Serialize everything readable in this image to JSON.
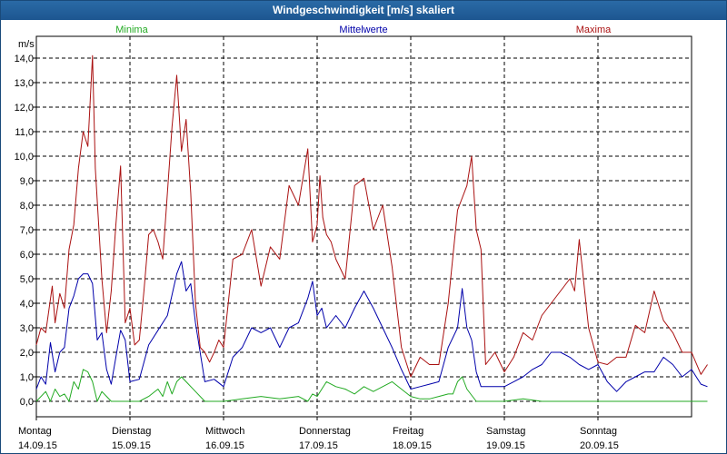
{
  "window": {
    "title": "Windgeschwindigkeit [m/s] skaliert"
  },
  "chart_data": {
    "type": "line",
    "title": "Windgeschwindigkeit [m/s] skaliert",
    "ylabel": "m/s",
    "xlabel": "",
    "ylim": [
      -0.3,
      14.5
    ],
    "yticks": [
      0,
      1,
      2,
      3,
      4,
      5,
      6,
      7,
      8,
      9,
      10,
      11,
      12,
      13,
      14
    ],
    "ytick_labels": [
      "0,0",
      "1,0",
      "2,0",
      "3,0",
      "4,0",
      "5,0",
      "6,0",
      "7,0",
      "8,0",
      "9,0",
      "10,0",
      "11,0",
      "12,0",
      "13,0",
      "14,0"
    ],
    "xlim": [
      0,
      7.2
    ],
    "xticks": [
      {
        "day": "Montag",
        "date": "14.09.15",
        "x": 0
      },
      {
        "day": "Dienstag",
        "date": "15.09.15",
        "x": 1
      },
      {
        "day": "Mittwoch",
        "date": "16.09.15",
        "x": 2
      },
      {
        "day": "Donnerstag",
        "date": "17.09.15",
        "x": 3
      },
      {
        "day": "Freitag",
        "date": "18.09.15",
        "x": 4
      },
      {
        "day": "Samstag",
        "date": "19.09.15",
        "x": 5
      },
      {
        "day": "Sonntag",
        "date": "20.09.15",
        "x": 6
      }
    ],
    "legend": [
      {
        "label": "Minima",
        "color": "#22aa22"
      },
      {
        "label": "Mittelwerte",
        "color": "#0000aa"
      },
      {
        "label": "Maxima",
        "color": "#aa1111"
      }
    ],
    "series": [
      {
        "name": "Maxima",
        "color": "#aa1111",
        "x": [
          0,
          0.05,
          0.1,
          0.17,
          0.2,
          0.25,
          0.3,
          0.35,
          0.4,
          0.45,
          0.5,
          0.55,
          0.6,
          0.63,
          0.7,
          0.75,
          0.8,
          0.85,
          0.9,
          0.95,
          1.0,
          1.05,
          1.1,
          1.15,
          1.2,
          1.25,
          1.3,
          1.35,
          1.4,
          1.45,
          1.5,
          1.55,
          1.6,
          1.65,
          1.7,
          1.75,
          1.8,
          1.85,
          1.9,
          1.95,
          2.0,
          2.1,
          2.2,
          2.3,
          2.4,
          2.5,
          2.6,
          2.7,
          2.8,
          2.9,
          2.95,
          3.0,
          3.03,
          3.06,
          3.1,
          3.15,
          3.2,
          3.3,
          3.4,
          3.5,
          3.6,
          3.7,
          3.8,
          3.9,
          4.0,
          4.1,
          4.2,
          4.3,
          4.4,
          4.5,
          4.6,
          4.65,
          4.7,
          4.75,
          4.8,
          4.9,
          5.0,
          5.1,
          5.2,
          5.3,
          5.4,
          5.5,
          5.6,
          5.7,
          5.75,
          5.8,
          5.9,
          6.0,
          6.1,
          6.2,
          6.3,
          6.4,
          6.5,
          6.6,
          6.7,
          6.8,
          6.9,
          7.0,
          7.1,
          7.17
        ],
        "values": [
          2.3,
          3.0,
          2.8,
          4.7,
          3.2,
          4.4,
          3.8,
          6.2,
          7.2,
          9.5,
          11.0,
          10.4,
          14.1,
          9.5,
          5.0,
          2.8,
          4.5,
          7.2,
          9.6,
          3.2,
          3.8,
          2.3,
          2.5,
          4.5,
          6.8,
          7.0,
          6.5,
          5.8,
          8.5,
          11.2,
          13.3,
          10.2,
          11.5,
          8.5,
          4.0,
          2.2,
          2.0,
          1.6,
          2.0,
          2.5,
          2.2,
          5.8,
          6.0,
          7.0,
          4.7,
          6.3,
          5.8,
          8.8,
          8.0,
          10.3,
          6.5,
          7.2,
          9.2,
          7.5,
          6.8,
          6.5,
          5.8,
          5.0,
          8.8,
          9.1,
          7.0,
          8.0,
          5.5,
          2.2,
          1.0,
          1.8,
          1.5,
          1.5,
          4.0,
          7.8,
          8.8,
          10.0,
          7.0,
          6.2,
          1.5,
          2.0,
          1.2,
          1.8,
          2.8,
          2.5,
          3.5,
          4.0,
          4.5,
          5.0,
          4.5,
          6.6,
          3.0,
          1.6,
          1.5,
          1.8,
          1.8,
          3.1,
          2.8,
          4.5,
          3.3,
          2.8,
          2.0,
          2.0,
          1.1,
          1.5
        ]
      },
      {
        "name": "Mittelwerte",
        "color": "#0000aa",
        "x": [
          0,
          0.05,
          0.1,
          0.15,
          0.2,
          0.25,
          0.3,
          0.35,
          0.4,
          0.45,
          0.5,
          0.55,
          0.6,
          0.65,
          0.7,
          0.75,
          0.8,
          0.85,
          0.9,
          0.95,
          1.0,
          1.1,
          1.2,
          1.3,
          1.4,
          1.5,
          1.55,
          1.6,
          1.65,
          1.7,
          1.8,
          1.9,
          2.0,
          2.1,
          2.2,
          2.3,
          2.4,
          2.5,
          2.6,
          2.7,
          2.8,
          2.9,
          2.95,
          3.0,
          3.05,
          3.1,
          3.2,
          3.3,
          3.4,
          3.5,
          3.6,
          3.7,
          3.8,
          3.9,
          4.0,
          4.1,
          4.2,
          4.3,
          4.4,
          4.5,
          4.55,
          4.6,
          4.65,
          4.7,
          4.75,
          4.8,
          4.9,
          5.0,
          5.1,
          5.2,
          5.3,
          5.4,
          5.5,
          5.6,
          5.7,
          5.8,
          5.9,
          6.0,
          6.1,
          6.2,
          6.3,
          6.4,
          6.5,
          6.6,
          6.7,
          6.8,
          6.9,
          7.0,
          7.1,
          7.17
        ],
        "values": [
          0.5,
          1.0,
          0.7,
          2.4,
          1.2,
          2.0,
          2.2,
          3.8,
          4.3,
          5.0,
          5.2,
          5.2,
          4.8,
          2.5,
          2.8,
          1.3,
          0.7,
          1.8,
          2.9,
          2.5,
          0.8,
          0.9,
          2.3,
          2.9,
          3.5,
          5.2,
          5.7,
          4.5,
          4.8,
          3.2,
          0.8,
          0.9,
          0.6,
          1.8,
          2.2,
          3.0,
          2.8,
          3.0,
          2.2,
          3.0,
          3.2,
          4.2,
          4.9,
          3.5,
          3.8,
          3.0,
          3.5,
          3.0,
          3.8,
          4.5,
          3.8,
          3.0,
          2.2,
          1.3,
          0.5,
          0.6,
          0.7,
          0.8,
          2.2,
          3.0,
          4.6,
          3.0,
          2.5,
          1.2,
          0.6,
          0.6,
          0.6,
          0.6,
          0.8,
          1.0,
          1.3,
          1.5,
          2.0,
          2.0,
          1.8,
          1.5,
          1.3,
          1.5,
          0.8,
          0.4,
          0.8,
          1.0,
          1.2,
          1.2,
          1.8,
          1.5,
          1.0,
          1.3,
          0.7,
          0.6
        ]
      },
      {
        "name": "Minima",
        "color": "#22aa22",
        "x": [
          0,
          0.1,
          0.15,
          0.2,
          0.25,
          0.3,
          0.35,
          0.4,
          0.45,
          0.5,
          0.55,
          0.6,
          0.65,
          0.7,
          0.75,
          0.8,
          0.9,
          1.0,
          1.1,
          1.2,
          1.3,
          1.35,
          1.4,
          1.45,
          1.5,
          1.55,
          1.6,
          1.7,
          1.8,
          1.9,
          2.0,
          2.2,
          2.4,
          2.6,
          2.8,
          2.9,
          2.95,
          3.0,
          3.05,
          3.1,
          3.2,
          3.3,
          3.4,
          3.5,
          3.6,
          3.7,
          3.8,
          3.9,
          4.0,
          4.1,
          4.2,
          4.3,
          4.4,
          4.45,
          4.5,
          4.55,
          4.6,
          4.7,
          4.8,
          5.0,
          5.2,
          5.4,
          5.6,
          5.8,
          6.0,
          6.2,
          6.4,
          6.6,
          6.8,
          7.0,
          7.17
        ],
        "values": [
          0.0,
          0.4,
          0.0,
          0.5,
          0.2,
          0.3,
          0.0,
          0.8,
          0.5,
          1.3,
          1.2,
          0.8,
          0.0,
          0.4,
          0.2,
          0.0,
          0.0,
          0.0,
          0.0,
          0.2,
          0.5,
          0.2,
          0.8,
          0.3,
          0.8,
          1.0,
          0.8,
          0.4,
          0.0,
          0.0,
          0.0,
          0.1,
          0.2,
          0.1,
          0.2,
          0.0,
          0.3,
          0.2,
          0.5,
          0.8,
          0.6,
          0.5,
          0.3,
          0.6,
          0.4,
          0.6,
          0.8,
          0.5,
          0.2,
          0.1,
          0.1,
          0.2,
          0.3,
          0.3,
          0.8,
          1.0,
          0.5,
          0.0,
          0.0,
          0.0,
          0.1,
          0.0,
          0.0,
          0.0,
          0.0,
          0.0,
          0.0,
          0.0,
          0.0,
          0.0,
          0.0
        ]
      }
    ]
  }
}
